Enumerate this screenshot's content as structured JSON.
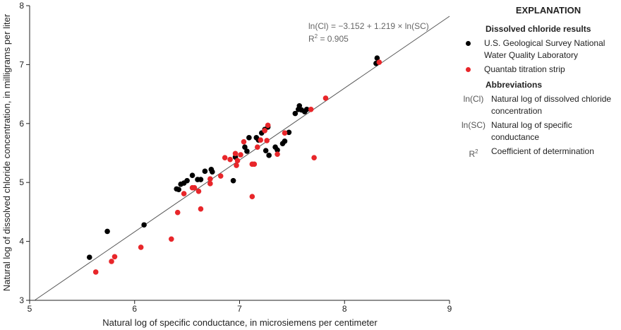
{
  "chart_data": {
    "type": "scatter",
    "xlabel": "Natural log of specific conductance, in microsiemens per centimeter",
    "ylabel": "Natural log of dissolved chloride concentration, in milligrams per liter",
    "xlim": [
      5,
      9
    ],
    "ylim": [
      3,
      8
    ],
    "xticks": [
      5,
      6,
      7,
      8,
      9
    ],
    "yticks": [
      3,
      4,
      5,
      6,
      7,
      8
    ],
    "grid": false,
    "equation": "ln(Cl) = −3.152 + 1.219 × ln(SC)",
    "r_squared": {
      "symbol": "R",
      "exponent": "2",
      "text": " = 0.905"
    },
    "legend": {
      "title": "EXPLANATION",
      "series_heading": "Dissolved chloride results",
      "abbreviations_heading": "Abbreviations",
      "abbreviations": [
        {
          "term": "ln(Cl)",
          "definition": "Natural log of dissolved chloride concentration"
        },
        {
          "term": "ln(SC)",
          "definition": "Natural log of specific conductance"
        },
        {
          "term": "R",
          "superscript": "2",
          "definition": "Coefficient of determination"
        }
      ]
    },
    "series": [
      {
        "name": "U.S. Geological Survey National Water Quality Laboratory",
        "color": "#000000",
        "x": [
          5.57,
          5.74,
          6.09,
          6.4,
          6.42,
          6.44,
          6.47,
          6.5,
          6.55,
          6.6,
          6.63,
          6.67,
          6.73,
          6.74,
          6.94,
          6.96,
          7.05,
          7.07,
          7.09,
          7.16,
          7.18,
          7.21,
          7.24,
          7.25,
          7.27,
          7.28,
          7.34,
          7.36,
          7.41,
          7.43,
          7.47,
          7.53,
          7.56,
          7.57,
          7.59,
          7.62,
          7.64,
          8.3,
          8.31
        ],
        "values": [
          3.73,
          4.17,
          4.28,
          4.89,
          4.88,
          4.97,
          4.99,
          5.03,
          5.12,
          5.05,
          5.05,
          5.19,
          5.22,
          5.18,
          5.03,
          5.43,
          5.6,
          5.53,
          5.76,
          5.76,
          5.72,
          5.84,
          5.9,
          5.54,
          5.94,
          5.46,
          5.6,
          5.55,
          5.66,
          5.7,
          5.85,
          6.17,
          6.24,
          6.3,
          6.23,
          6.2,
          6.24,
          7.02,
          7.11
        ]
      },
      {
        "name": "Quantab titration strip",
        "color": "#e8262a",
        "x": [
          5.63,
          5.78,
          5.81,
          6.06,
          6.35,
          6.41,
          6.47,
          6.55,
          6.57,
          6.61,
          6.63,
          6.72,
          6.72,
          6.82,
          6.86,
          6.91,
          6.96,
          6.97,
          6.98,
          7.01,
          7.04,
          7.12,
          7.14,
          7.12,
          7.17,
          7.2,
          7.24,
          7.27,
          7.26,
          7.36,
          7.43,
          7.68,
          7.71,
          7.82,
          8.33
        ],
        "values": [
          3.48,
          3.66,
          3.74,
          3.9,
          4.04,
          4.49,
          4.81,
          4.91,
          4.91,
          4.85,
          4.55,
          4.98,
          5.06,
          5.11,
          5.42,
          5.39,
          5.49,
          5.29,
          5.37,
          5.47,
          5.69,
          5.31,
          5.31,
          4.76,
          5.6,
          5.72,
          5.88,
          5.97,
          5.71,
          5.48,
          5.84,
          6.24,
          5.42,
          6.43,
          7.04
        ]
      }
    ]
  }
}
